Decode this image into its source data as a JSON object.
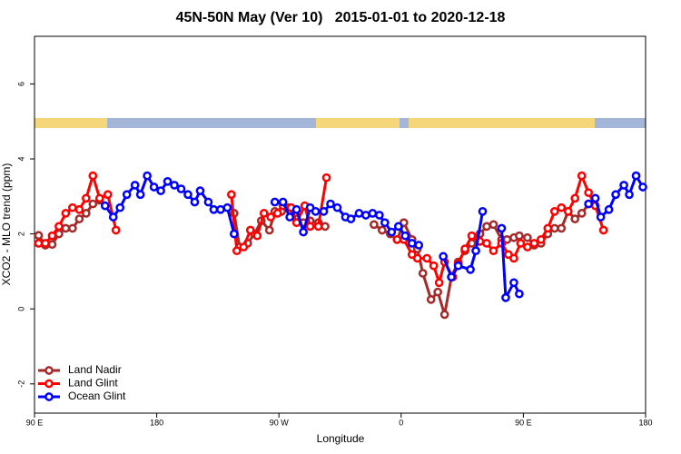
{
  "chart_data": {
    "type": "line",
    "title": "45N-50N May (Ver 10)   2015-01-01 to 2020-12-18",
    "x_label": "Longitude",
    "y_label": "XCO2 - MLO trend (ppm)",
    "xlim": [
      90,
      540
    ],
    "ylim": [
      -2.78,
      7.27
    ],
    "xticks": [
      {
        "value": 90,
        "label": "90 E"
      },
      180,
      {
        "value": 270,
        "label": "90 W"
      },
      {
        "value": 360,
        "label": "0"
      },
      {
        "value": 450,
        "label": "90 E"
      },
      {
        "value": 540,
        "label": "180"
      }
    ],
    "yticks": [
      -2,
      0,
      2,
      4,
      6
    ],
    "legend": "bottom-left",
    "series": [
      {
        "name": "Land Nadir",
        "color": "#a52a2a",
        "x": [
          93,
          98,
          103,
          108,
          113,
          118,
          123,
          128,
          133,
          138,
          190,
          237,
          241,
          247,
          252,
          257,
          263,
          267,
          272,
          277,
          283,
          288,
          293,
          299,
          304,
          320,
          340,
          346,
          352,
          357,
          362,
          368,
          372,
          376,
          382,
          387,
          392,
          397,
          402,
          407,
          412,
          418,
          423,
          428,
          434,
          438,
          443,
          447,
          453,
          458,
          463,
          468,
          473,
          478,
          483,
          488,
          493,
          498
        ],
        "values": [
          1.96,
          1.7,
          1.72,
          2.0,
          2.15,
          2.15,
          2.4,
          2.55,
          2.8,
          2.9,
          null,
          2.55,
          1.65,
          1.75,
          2.0,
          2.35,
          2.1,
          2.6,
          2.6,
          2.7,
          2.4,
          2.3,
          2.35,
          2.3,
          2.2,
          null,
          2.25,
          2.1,
          2.0,
          1.85,
          2.3,
          1.85,
          1.6,
          0.95,
          0.25,
          0.45,
          -0.15,
          0.85,
          1.25,
          1.55,
          1.75,
          2.0,
          2.2,
          2.25,
          1.85,
          1.85,
          1.9,
          1.95,
          1.9,
          1.7,
          1.75,
          2.0,
          2.15,
          2.15,
          2.6,
          2.4,
          2.55,
          2.8
        ]
      },
      {
        "name": "Land Glint",
        "color": "#ff0000",
        "x": [
          93,
          98,
          103,
          108,
          113,
          118,
          123,
          128,
          133,
          138,
          144,
          150,
          190,
          235,
          239,
          244,
          249,
          254,
          259,
          264,
          269,
          273,
          279,
          283,
          289,
          293,
          299,
          305,
          330,
          357,
          362,
          368,
          372,
          379,
          384,
          388,
          392,
          398,
          402,
          407,
          412,
          418,
          423,
          428,
          434,
          439,
          443,
          448,
          453,
          458,
          463,
          468,
          473,
          478,
          483,
          488,
          493,
          498,
          503,
          509
        ],
        "values": [
          1.75,
          1.75,
          1.95,
          2.2,
          2.55,
          2.7,
          2.65,
          2.95,
          3.55,
          2.95,
          3.05,
          2.1,
          null,
          3.05,
          1.55,
          1.65,
          2.1,
          1.95,
          2.55,
          2.45,
          2.55,
          2.75,
          2.7,
          2.3,
          2.75,
          2.2,
          2.2,
          3.5,
          null,
          1.85,
          1.85,
          1.45,
          1.35,
          1.35,
          1.15,
          0.7,
          1.25,
          0.85,
          1.2,
          1.6,
          1.95,
          1.8,
          1.75,
          1.55,
          1.75,
          1.45,
          1.35,
          1.75,
          1.65,
          1.75,
          1.85,
          2.15,
          2.6,
          2.7,
          2.6,
          2.95,
          3.55,
          3.1,
          2.75,
          2.1
        ]
      },
      {
        "name": "Ocean Glint",
        "color": "#0000ff",
        "x": [
          142,
          148,
          153,
          158,
          164,
          168,
          173,
          178,
          183,
          188,
          193,
          198,
          203,
          208,
          212,
          218,
          222,
          227,
          232,
          237,
          252,
          267,
          273,
          278,
          283,
          288,
          293,
          297,
          303,
          308,
          313,
          319,
          323,
          329,
          334,
          339,
          344,
          348,
          353,
          358,
          363,
          368,
          373,
          382,
          391,
          397,
          402,
          411,
          415,
          420,
          427,
          434,
          437,
          443,
          447,
          470,
          498,
          503,
          507,
          513,
          518,
          524,
          528,
          533,
          538
        ],
        "values": [
          2.75,
          2.45,
          2.7,
          3.05,
          3.3,
          3.05,
          3.55,
          3.25,
          3.15,
          3.4,
          3.3,
          3.2,
          3.05,
          2.85,
          3.15,
          2.85,
          2.65,
          2.65,
          2.7,
          2.0,
          null,
          2.85,
          2.85,
          2.45,
          2.65,
          2.05,
          2.7,
          2.6,
          2.6,
          2.8,
          2.7,
          2.45,
          2.4,
          2.55,
          2.5,
          2.55,
          2.5,
          2.3,
          2.05,
          2.2,
          1.95,
          1.75,
          1.7,
          null,
          1.4,
          0.85,
          1.15,
          1.05,
          1.55,
          2.6,
          null,
          2.15,
          0.3,
          0.7,
          0.4,
          null,
          2.8,
          2.95,
          2.45,
          2.65,
          3.05,
          3.3,
          3.05,
          3.55,
          3.25
        ]
      }
    ]
  }
}
